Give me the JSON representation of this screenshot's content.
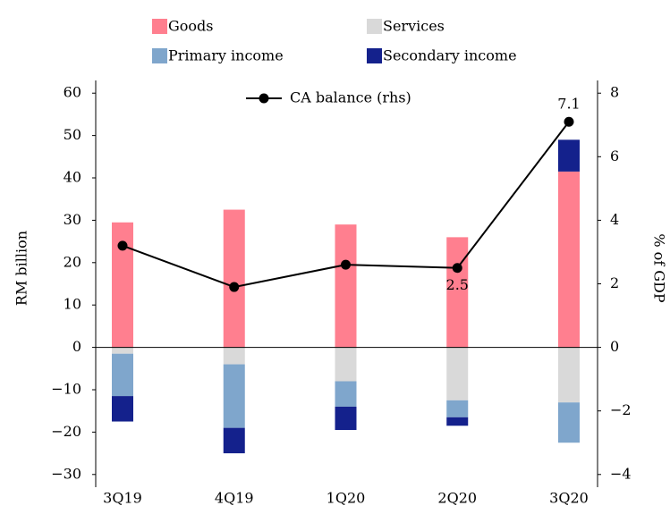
{
  "chart_data": {
    "type": "stacked-bar-line",
    "categories": [
      "3Q19",
      "4Q19",
      "1Q20",
      "2Q20",
      "3Q20"
    ],
    "series": [
      {
        "name": "Goods",
        "color": "#ff7f8f",
        "values": [
          29.5,
          32.5,
          29,
          26,
          41.5
        ]
      },
      {
        "name": "Services",
        "color": "#d9d9d9",
        "values": [
          -1.5,
          -4,
          -8,
          -12.5,
          -13
        ]
      },
      {
        "name": "Primary income",
        "color": "#7fa6cc",
        "values": [
          -10,
          -15,
          -6,
          -4,
          -9.5
        ]
      },
      {
        "name": "Secondary income",
        "color": "#14218c",
        "values": [
          -6,
          -6,
          -5.5,
          -2,
          7.5
        ]
      },
      {
        "name": "CA balance (rhs)",
        "color": "#000000",
        "axis": "y2",
        "type": "line",
        "values": [
          3.2,
          1.9,
          2.6,
          2.5,
          7.1
        ],
        "value_labels": [
          null,
          null,
          null,
          "2.5",
          "7.1"
        ]
      }
    ],
    "y_label": "RM billion",
    "y2_label": "% of GDP",
    "ylim": [
      -33,
      63
    ],
    "yticks": [
      {
        "value": -30,
        "label": "−30"
      },
      {
        "value": -20,
        "label": "−20"
      },
      {
        "value": -10,
        "label": "−10"
      },
      0,
      10,
      20,
      30,
      40,
      50,
      60
    ],
    "y2lim": [
      -4.4,
      8.4
    ],
    "y2ticks": [
      {
        "value": -4,
        "label": "−4"
      },
      {
        "value": -2,
        "label": "−2"
      },
      0,
      2,
      4,
      6,
      8
    ]
  }
}
